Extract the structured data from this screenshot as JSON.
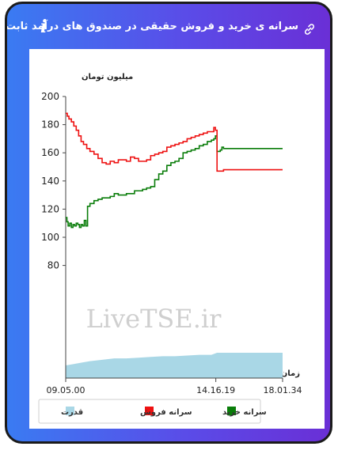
{
  "header": {
    "title": "سرانه ی خرید و فروش حقیقی در صندوق های درآمد ثابت",
    "info_icon": "i"
  },
  "colors": {
    "buy": "#0a7d0a",
    "sell": "#ee1111",
    "power": "#a9d7e6",
    "header_gradient_start": "#3a7bf2",
    "header_gradient_end": "#6a2fd6"
  },
  "chart_data": {
    "type": "line",
    "ylabel": "میلیون تومان",
    "xlabel": "زمان",
    "ylim": [
      0,
      200
    ],
    "y_axis_min_visible": 80,
    "yticks": [
      80,
      100,
      120,
      140,
      160,
      180,
      200
    ],
    "xticks": [
      "09.05.00",
      "14.16.19",
      "18.01.34"
    ],
    "x_range_minutes": [
      0,
      536
    ],
    "tick_minutes": [
      0,
      371,
      536
    ],
    "grid": false,
    "legend_position": "bottom",
    "watermark": "LiveTSE.ir",
    "series": [
      {
        "name": "سرانه خرید",
        "key": "buy",
        "x": [
          0,
          3,
          6,
          10,
          14,
          18,
          22,
          26,
          30,
          34,
          38,
          42,
          46,
          50,
          54,
          60,
          70,
          80,
          90,
          100,
          110,
          120,
          130,
          140,
          150,
          160,
          170,
          180,
          190,
          200,
          210,
          220,
          230,
          240,
          250,
          260,
          270,
          280,
          290,
          300,
          310,
          320,
          330,
          340,
          350,
          360,
          366,
          370,
          374,
          378,
          382,
          386,
          390,
          400,
          420,
          450,
          480,
          510,
          536
        ],
        "y": [
          114,
          111,
          108,
          110,
          107,
          109,
          108,
          110,
          109,
          107,
          109,
          108,
          112,
          108,
          122,
          124,
          126,
          127,
          128,
          128,
          129,
          131,
          130,
          130,
          131,
          131,
          133,
          133,
          134,
          135,
          136,
          141,
          145,
          147,
          151,
          153,
          154,
          156,
          160,
          161,
          162,
          163,
          165,
          166,
          168,
          169,
          170,
          172,
          161,
          161,
          162,
          164,
          163,
          163,
          163,
          163,
          163,
          163,
          163
        ]
      },
      {
        "name": "سرانه فروش",
        "key": "sell",
        "x": [
          0,
          4,
          8,
          14,
          20,
          26,
          32,
          38,
          44,
          52,
          60,
          70,
          80,
          90,
          100,
          110,
          120,
          130,
          140,
          150,
          160,
          170,
          180,
          190,
          200,
          210,
          220,
          230,
          240,
          250,
          260,
          270,
          280,
          290,
          300,
          310,
          320,
          330,
          340,
          350,
          360,
          366,
          370,
          374,
          378,
          390,
          400,
          420,
          450,
          480,
          510,
          536
        ],
        "y": [
          188,
          186,
          184,
          182,
          179,
          176,
          172,
          168,
          166,
          163,
          161,
          159,
          156,
          153,
          152,
          154,
          153,
          155,
          155,
          154,
          157,
          156,
          154,
          154,
          155,
          158,
          159,
          160,
          161,
          164,
          165,
          166,
          167,
          168,
          170,
          171,
          172,
          173,
          174,
          175,
          175,
          178,
          176,
          147,
          147,
          148,
          148,
          148,
          148,
          148,
          148,
          148
        ]
      },
      {
        "name": "قدرت",
        "key": "power",
        "type": "area",
        "x": [
          0,
          20,
          40,
          60,
          90,
          120,
          150,
          180,
          210,
          240,
          270,
          300,
          330,
          360,
          374,
          400,
          450,
          500,
          536
        ],
        "y": [
          9,
          10,
          11,
          12,
          13,
          14,
          14,
          14.5,
          15,
          15.5,
          15.5,
          16,
          16.5,
          16.5,
          18,
          18,
          18,
          18,
          18
        ]
      }
    ],
    "legend": [
      "سرانه خرید",
      "سرانه فروش",
      "قدرت"
    ]
  }
}
